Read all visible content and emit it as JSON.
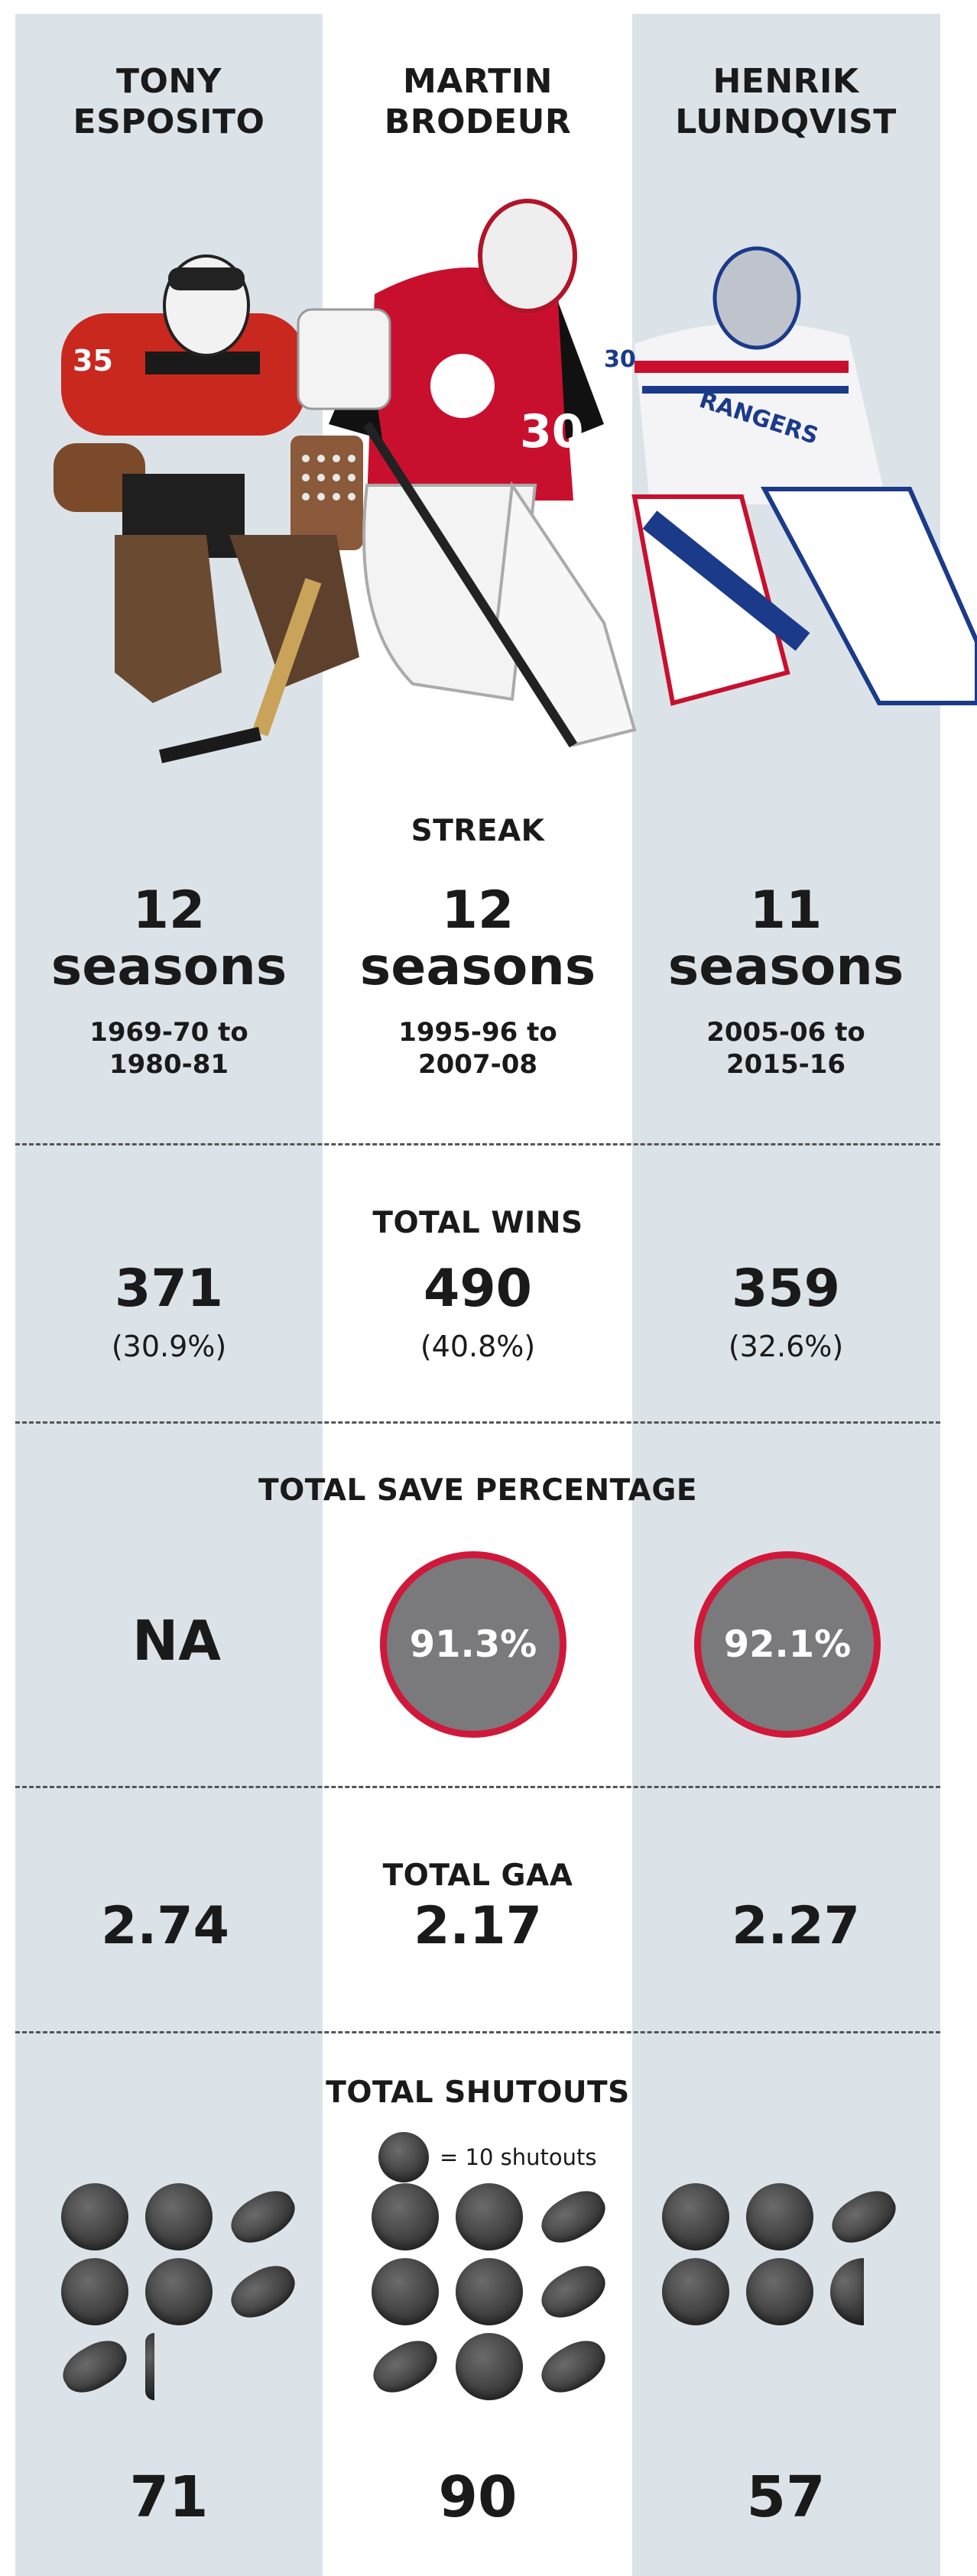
{
  "players": [
    {
      "first": "TONY",
      "last": "ESPOSITO",
      "streak": "12",
      "streak_unit": "seasons",
      "range1": "1969-70 to",
      "range2": "1980-81",
      "wins": "371",
      "wins_pct": "(30.9%)",
      "save_pct": "NA",
      "gaa": "2.74",
      "shutouts": "71"
    },
    {
      "first": "MARTIN",
      "last": "BRODEUR",
      "streak": "12",
      "streak_unit": "seasons",
      "range1": "1995-96 to",
      "range2": "2007-08",
      "wins": "490",
      "wins_pct": "(40.8%)",
      "save_pct": "91.3%",
      "gaa": "2.17",
      "shutouts": "90"
    },
    {
      "first": "HENRIK",
      "last": "LUNDQVIST",
      "streak": "11",
      "streak_unit": "seasons",
      "range1": "2005-06 to",
      "range2": "2015-16",
      "wins": "359",
      "wins_pct": "(32.6%)",
      "save_pct": "92.1%",
      "gaa": "2.27",
      "shutouts": "57"
    }
  ],
  "sections": {
    "streak": "STREAK",
    "wins": "TOTAL WINS",
    "save": "TOTAL SAVE PERCENTAGE",
    "gaa": "TOTAL GAA",
    "shutouts": "TOTAL SHUTOUTS"
  },
  "legend": {
    "text": "= 10 shutouts",
    "puck_value": 10
  },
  "colors": {
    "column_bg": "#dce3e8",
    "ring": "#d0183a",
    "ring_fill": "#7a7a7d"
  },
  "jersey_numbers": {
    "esposito": "35",
    "brodeur": "30",
    "lundqvist": "30"
  },
  "jersey_text": {
    "rangers": "RANGERS"
  }
}
